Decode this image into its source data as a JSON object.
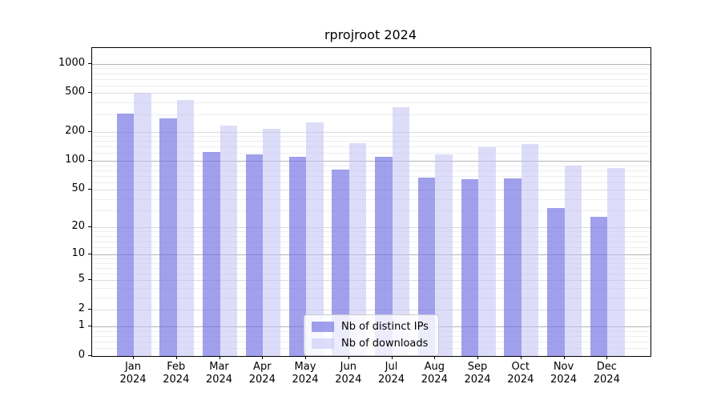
{
  "title": "rprojroot 2024",
  "chart_data": {
    "type": "bar",
    "title": "rprojroot 2024",
    "categories": [
      "Jan",
      "Feb",
      "Mar",
      "Apr",
      "May",
      "Jun",
      "Jul",
      "Aug",
      "Sep",
      "Oct",
      "Nov",
      "Dec"
    ],
    "x_year": "2024",
    "series": [
      {
        "name": "Nb of distinct IPs",
        "color": "#a0a0ed",
        "fill": "rgba(115,115,229,0.68)",
        "values": [
          310,
          276,
          124,
          116,
          110,
          81,
          110,
          67,
          64,
          66,
          32,
          26
        ]
      },
      {
        "name": "Nb of downloads",
        "color": "#dcdcfa",
        "fill": "rgba(193,193,246,0.55)",
        "values": [
          500,
          427,
          233,
          215,
          248,
          151,
          360,
          117,
          139,
          150,
          89,
          85
        ]
      }
    ],
    "y_scale": "log1p",
    "ylim": [
      0,
      1460
    ],
    "y_ticks": [
      0,
      1,
      2,
      5,
      10,
      20,
      50,
      100,
      200,
      500,
      1000
    ],
    "y_major_gridlines": [
      1,
      10,
      100,
      1000
    ],
    "y_mid_gridlines": [
      2,
      5,
      20,
      50,
      200,
      500
    ],
    "y_minor_gridlines": [
      0.2,
      0.4,
      0.6,
      0.8,
      3,
      4,
      6,
      7,
      8,
      9,
      12,
      14,
      16,
      18,
      30,
      40,
      60,
      70,
      80,
      90,
      120,
      140,
      160,
      180,
      300,
      400,
      600,
      700,
      800,
      900
    ],
    "grid": true,
    "legend_position": "lower center"
  }
}
